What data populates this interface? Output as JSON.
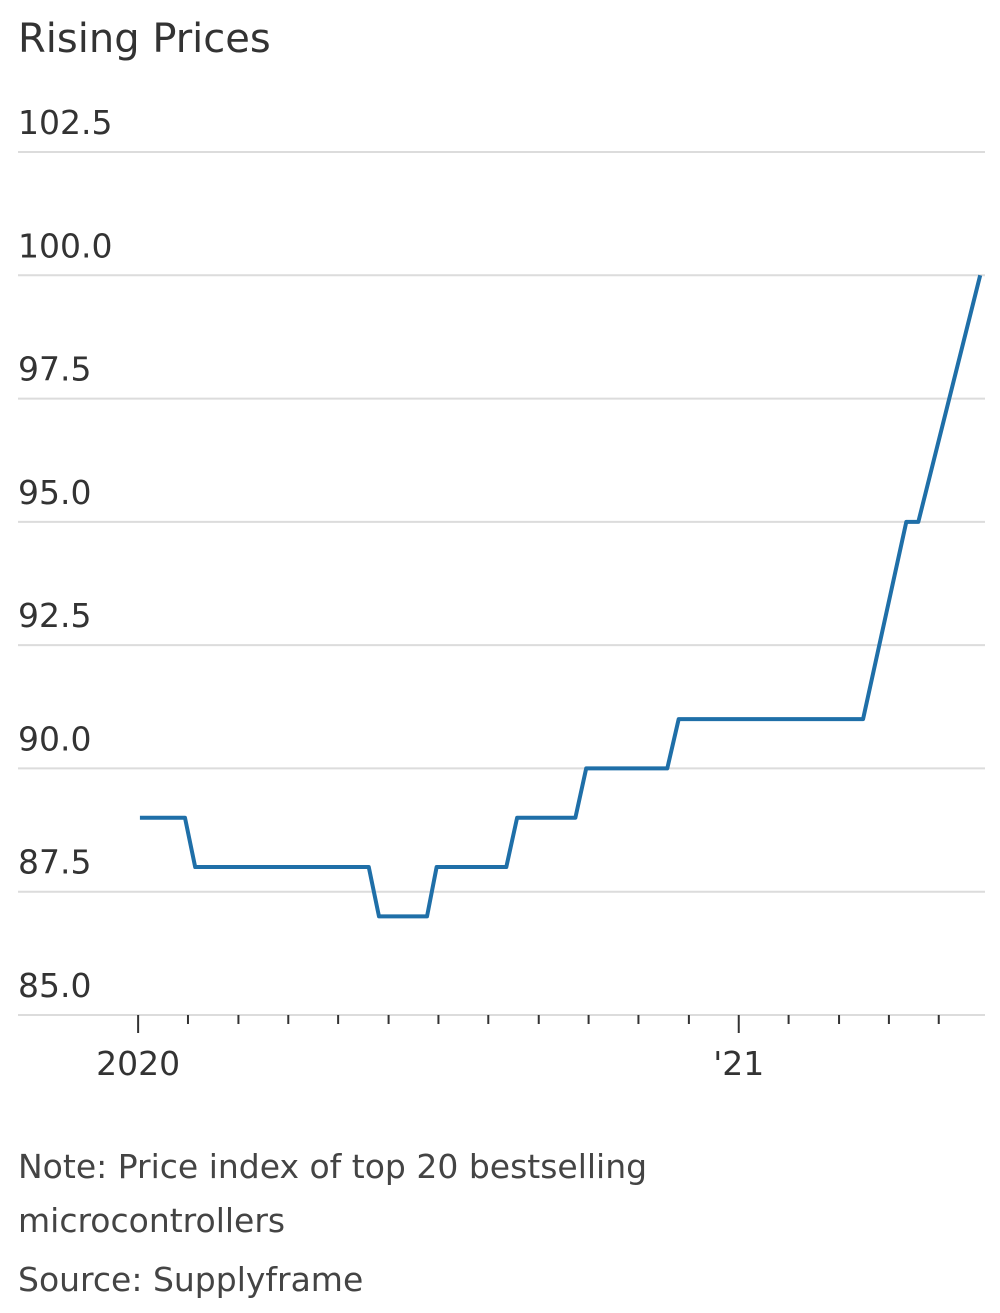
{
  "chart_data": {
    "type": "line",
    "title": "Rising Prices",
    "x": [
      2020.003,
      2020.078,
      2020.095,
      2020.384,
      2020.401,
      2020.481,
      2020.497,
      2020.613,
      2020.631,
      2020.728,
      2020.746,
      2020.881,
      2020.9,
      2021.207,
      2021.279,
      2021.299,
      2021.402
    ],
    "values": [
      89.0,
      89.0,
      88.0,
      88.0,
      87.0,
      87.0,
      88.0,
      88.0,
      89.0,
      89.0,
      90.0,
      90.0,
      91.0,
      91.0,
      95.0,
      95.0,
      100.0
    ],
    "color": "#1f6fa8",
    "xlim": [
      2019.8,
      2021.41
    ],
    "xticks": [
      2020,
      {
        "value": 2021,
        "label": "'21"
      }
    ],
    "xminorticks": [
      2020.083,
      2020.167,
      2020.25,
      2020.333,
      2020.417,
      2020.5,
      2020.583,
      2020.667,
      2020.75,
      2020.833,
      2020.917,
      2021.083,
      2021.167,
      2021.25,
      2021.333
    ],
    "ylim": [
      85,
      102.5
    ],
    "yticks": [
      {
        "value": 85,
        "label": "85.0"
      },
      87.5,
      {
        "value": 90,
        "label": "90.0"
      },
      92.5,
      {
        "value": 95,
        "label": "95.0"
      },
      97.5,
      {
        "value": 100,
        "label": "100.0"
      },
      102.5
    ],
    "grid": true,
    "note": "Note: Price index of top 20 bestselling microcontrollers",
    "source": "Source: Supplyframe"
  }
}
